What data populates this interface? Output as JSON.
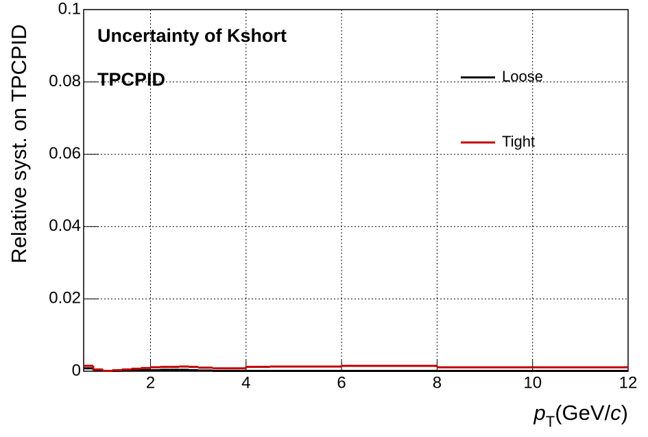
{
  "chart_data": {
    "type": "histogram",
    "annotations": [
      "Uncertainty of Kshort",
      "TPCPID"
    ],
    "ylabel": "Relative syst. on TPCPID",
    "xlabel_parts": [
      "p",
      "T",
      "(GeV/",
      "c",
      ")"
    ],
    "bins": [
      0.6,
      0.8,
      1.0,
      1.2,
      1.4,
      1.6,
      1.8,
      2.0,
      2.2,
      2.4,
      2.6,
      2.8,
      3.0,
      3.3,
      3.6,
      4.0,
      4.5,
      5.0,
      6.0,
      8.0,
      12.0
    ],
    "series": [
      {
        "name": "Loose",
        "color": "#000000",
        "values": [
          0.0008,
          0.0003,
          0.0001,
          0.0001,
          0.0002,
          0.0002,
          0.0003,
          0.0003,
          0.0004,
          0.0004,
          0.0004,
          0.0003,
          0.0002,
          0.0001,
          0.0001,
          0.0001,
          0.0001,
          0.0001,
          0.0001,
          0.0001
        ]
      },
      {
        "name": "Tight",
        "color": "#c00000",
        "values": [
          0.0015,
          0.0005,
          0.0001,
          0.0003,
          0.0005,
          0.0007,
          0.0009,
          0.0011,
          0.0012,
          0.0012,
          0.0013,
          0.0012,
          0.001,
          0.0008,
          0.0008,
          0.0012,
          0.0013,
          0.0013,
          0.0015,
          0.0011
        ]
      }
    ],
    "xlim": [
      0.6,
      12
    ],
    "ylim": [
      0,
      0.1
    ],
    "xticks": [
      2,
      4,
      6,
      8,
      10,
      12
    ],
    "yticks": [
      0,
      0.02,
      0.04,
      0.06,
      0.08,
      0.1
    ],
    "grid": true
  }
}
